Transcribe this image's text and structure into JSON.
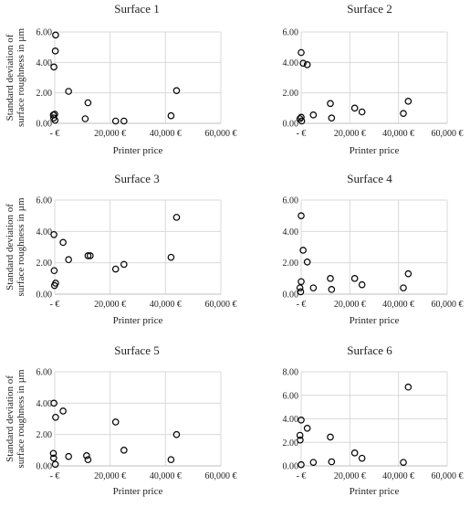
{
  "chart_data": [
    {
      "type": "scatter",
      "title": "Surface 1",
      "xlabel": "Printer price",
      "ylabel": [
        "Standard deviation of",
        "surface roughness in µm"
      ],
      "xlim": [
        0,
        60000
      ],
      "ylim": [
        0,
        6
      ],
      "x_ticks": [
        "-  €",
        "20,000 €",
        "40,000 €",
        "60,000 €"
      ],
      "y_ticks": [
        "0.00",
        "2.00",
        "4.00",
        "6.00"
      ],
      "grid": "horizontal and vertical",
      "points": [
        {
          "x": 300,
          "y": 5.8
        },
        {
          "x": 0,
          "y": 0.6
        },
        {
          "x": -300,
          "y": 3.7
        },
        {
          "x": 200,
          "y": 4.75
        },
        {
          "x": -500,
          "y": 0.55
        },
        {
          "x": -400,
          "y": 0.35
        },
        {
          "x": 100,
          "y": 0.2
        },
        {
          "x": 5000,
          "y": 2.1
        },
        {
          "x": 12000,
          "y": 1.35
        },
        {
          "x": 11000,
          "y": 0.3
        },
        {
          "x": 22000,
          "y": 0.15
        },
        {
          "x": 25000,
          "y": 0.15
        },
        {
          "x": 42000,
          "y": 0.5
        },
        {
          "x": 44000,
          "y": 2.15
        }
      ]
    },
    {
      "type": "scatter",
      "title": "Surface 2",
      "xlabel": "Printer price",
      "ylabel": [],
      "xlim": [
        0,
        60000
      ],
      "ylim": [
        0,
        6
      ],
      "x_ticks": [
        "-  €",
        "20,000 €",
        "40,000 €",
        "60,000 €"
      ],
      "y_ticks": [
        "0.00",
        "2.00",
        "4.00",
        "6.00"
      ],
      "grid": "horizontal and vertical",
      "points": [
        {
          "x": 0,
          "y": 4.65
        },
        {
          "x": 800,
          "y": 3.95
        },
        {
          "x": 2500,
          "y": 3.85
        },
        {
          "x": -500,
          "y": 0.3
        },
        {
          "x": 0,
          "y": 0.4
        },
        {
          "x": 200,
          "y": 0.15
        },
        {
          "x": 5000,
          "y": 0.55
        },
        {
          "x": 12000,
          "y": 1.3
        },
        {
          "x": 12500,
          "y": 0.35
        },
        {
          "x": 22000,
          "y": 1.0
        },
        {
          "x": 25000,
          "y": 0.75
        },
        {
          "x": 42000,
          "y": 0.65
        },
        {
          "x": 44000,
          "y": 1.45
        }
      ]
    },
    {
      "type": "scatter",
      "title": "Surface 3",
      "xlabel": "Printer price",
      "ylabel": [
        "Standard deviation of",
        "surface roughness in µm"
      ],
      "xlim": [
        0,
        60000
      ],
      "ylim": [
        0,
        6
      ],
      "x_ticks": [
        "-  €",
        "20,000 €",
        "40,000 €",
        "60,000 €"
      ],
      "y_ticks": [
        "0.00",
        "2.00",
        "4.00",
        "6.00"
      ],
      "grid": "horizontal and vertical",
      "points": [
        {
          "x": -300,
          "y": 3.8
        },
        {
          "x": 3000,
          "y": 3.3
        },
        {
          "x": -200,
          "y": 1.5
        },
        {
          "x": -100,
          "y": 0.55
        },
        {
          "x": 300,
          "y": 0.7
        },
        {
          "x": 5000,
          "y": 2.2
        },
        {
          "x": 12000,
          "y": 2.45
        },
        {
          "x": 12800,
          "y": 2.45
        },
        {
          "x": 22000,
          "y": 1.6
        },
        {
          "x": 25000,
          "y": 1.9
        },
        {
          "x": 42000,
          "y": 2.35
        },
        {
          "x": 44000,
          "y": 4.9
        }
      ]
    },
    {
      "type": "scatter",
      "title": "Surface 4",
      "xlabel": "Printer price",
      "ylabel": [],
      "xlim": [
        0,
        60000
      ],
      "ylim": [
        0,
        6
      ],
      "x_ticks": [
        "-  €",
        "20,000 €",
        "40,000 €",
        "60,000 €"
      ],
      "y_ticks": [
        "0.00",
        "2.00",
        "4.00",
        "6.00"
      ],
      "grid": "horizontal and vertical",
      "points": [
        {
          "x": 0,
          "y": 5.0
        },
        {
          "x": 800,
          "y": 2.8
        },
        {
          "x": 2500,
          "y": 2.05
        },
        {
          "x": -500,
          "y": 0.4
        },
        {
          "x": 0,
          "y": 0.8
        },
        {
          "x": -200,
          "y": 0.15
        },
        {
          "x": 5000,
          "y": 0.4
        },
        {
          "x": 12000,
          "y": 1.0
        },
        {
          "x": 12500,
          "y": 0.3
        },
        {
          "x": 22000,
          "y": 1.0
        },
        {
          "x": 25000,
          "y": 0.6
        },
        {
          "x": 42000,
          "y": 0.4
        },
        {
          "x": 44000,
          "y": 1.3
        }
      ]
    },
    {
      "type": "scatter",
      "title": "Surface 5",
      "xlabel": "Printer price",
      "ylabel": [
        "Standard deviation of",
        "surface roughness in µm"
      ],
      "xlim": [
        0,
        60000
      ],
      "ylim": [
        0,
        6
      ],
      "x_ticks": [
        "-  €",
        "20,000 €",
        "40,000 €",
        "60,000 €"
      ],
      "y_ticks": [
        "0.00",
        "2.00",
        "4.00",
        "6.00"
      ],
      "grid": "horizontal and vertical",
      "points": [
        {
          "x": -300,
          "y": 4.0
        },
        {
          "x": 3000,
          "y": 3.5
        },
        {
          "x": 300,
          "y": 3.1
        },
        {
          "x": -500,
          "y": 0.8
        },
        {
          "x": -400,
          "y": 0.5
        },
        {
          "x": 200,
          "y": 0.1
        },
        {
          "x": 5000,
          "y": 0.6
        },
        {
          "x": 11500,
          "y": 0.65
        },
        {
          "x": 12000,
          "y": 0.4
        },
        {
          "x": 22000,
          "y": 2.8
        },
        {
          "x": 25000,
          "y": 1.0
        },
        {
          "x": 42000,
          "y": 0.4
        },
        {
          "x": 44000,
          "y": 2.0
        }
      ]
    },
    {
      "type": "scatter",
      "title": "Surface 6",
      "xlabel": "Printer price",
      "ylabel": [],
      "xlim": [
        0,
        60000
      ],
      "ylim": [
        0,
        8
      ],
      "x_ticks": [
        "-  €",
        "20,000 €",
        "40,000 €",
        "60,000 €"
      ],
      "y_ticks": [
        "0.00",
        "2.00",
        "4.00",
        "6.00",
        "8.00"
      ],
      "grid": "horizontal and vertical",
      "points": [
        {
          "x": 0,
          "y": 3.9
        },
        {
          "x": 2500,
          "y": 3.2
        },
        {
          "x": -500,
          "y": 2.6
        },
        {
          "x": -400,
          "y": 2.2
        },
        {
          "x": 0,
          "y": 0.1
        },
        {
          "x": 5000,
          "y": 0.3
        },
        {
          "x": 12000,
          "y": 2.45
        },
        {
          "x": 12500,
          "y": 0.35
        },
        {
          "x": 22000,
          "y": 1.1
        },
        {
          "x": 25000,
          "y": 0.65
        },
        {
          "x": 42000,
          "y": 0.3
        },
        {
          "x": 44000,
          "y": 6.7
        }
      ]
    }
  ]
}
